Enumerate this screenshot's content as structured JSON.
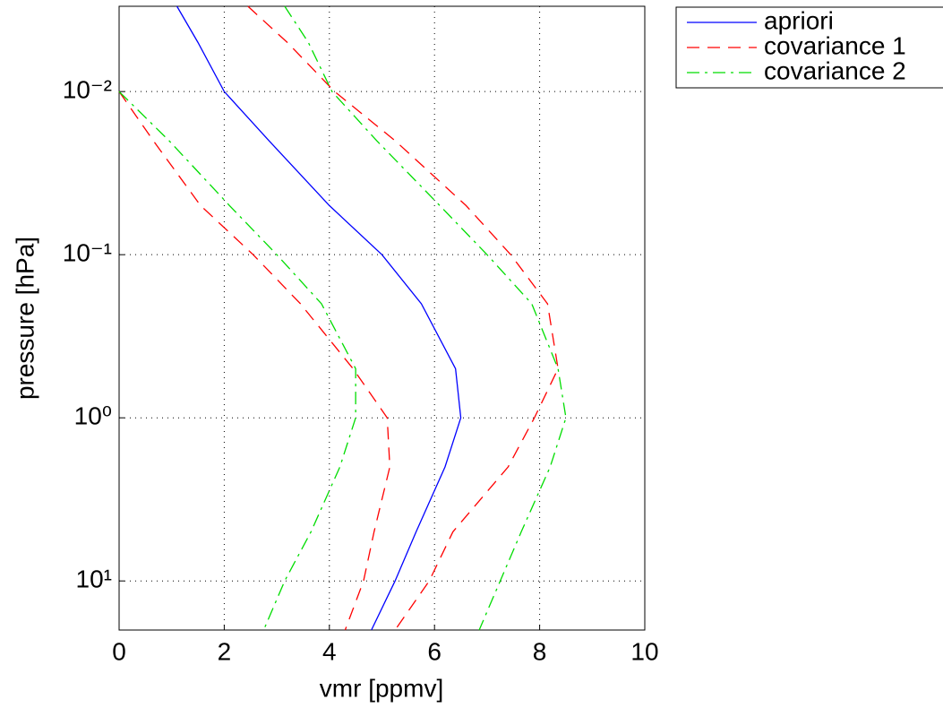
{
  "chart_data": {
    "type": "line",
    "xlabel": "vmr [ppmv]",
    "ylabel": "pressure [hPa]",
    "xlim": [
      0,
      10
    ],
    "xticks": [
      0,
      2,
      4,
      6,
      8,
      10
    ],
    "ylim": [
      0.003,
      20
    ],
    "ylog": true,
    "yreversed": true,
    "yticks": [
      {
        "value": 0.01,
        "label": "10⁻²"
      },
      {
        "value": 0.1,
        "label": "10⁻¹"
      },
      {
        "value": 1,
        "label": "10⁰"
      },
      {
        "value": 10,
        "label": "10¹"
      }
    ],
    "grid": true,
    "legend": "outside-upper-right",
    "pressure": [
      0.003,
      0.005,
      0.01,
      0.02,
      0.05,
      0.1,
      0.2,
      0.5,
      1,
      2,
      5,
      10,
      20
    ],
    "series": [
      {
        "name": "apriori",
        "color": "#0000ff",
        "dash": "solid",
        "values": [
          1.1,
          1.5,
          2.0,
          2.85,
          4.0,
          5.0,
          5.75,
          6.4,
          6.5,
          6.2,
          5.65,
          5.25,
          4.8
        ]
      },
      {
        "name": "covariance 1",
        "color": "#ff0000",
        "dash": "dashed",
        "values": [
          null,
          null,
          0,
          0.65,
          1.55,
          2.55,
          3.45,
          4.45,
          5.1,
          5.15,
          4.85,
          4.65,
          4.3
        ],
        "upper": [
          2.45,
          3.2,
          4.1,
          5.25,
          6.6,
          7.45,
          8.15,
          8.35,
          7.9,
          7.4,
          6.35,
          5.9,
          5.25
        ]
      },
      {
        "name": "covariance 2",
        "color": "#00dd00",
        "dash": "dashdot",
        "values": [
          null,
          null,
          0,
          0.95,
          2.1,
          3.0,
          3.85,
          4.5,
          4.5,
          4.2,
          3.65,
          3.15,
          2.75
        ],
        "upper": [
          3.15,
          3.6,
          4.05,
          4.9,
          6.1,
          7.0,
          7.85,
          8.35,
          8.5,
          8.2,
          7.65,
          7.25,
          6.85
        ]
      }
    ]
  }
}
